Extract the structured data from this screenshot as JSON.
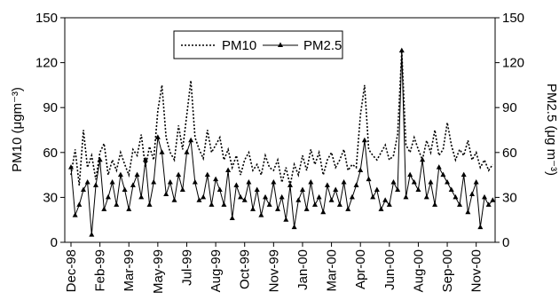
{
  "chart_data": {
    "type": "line",
    "ylabel": "PM10 (μgm⁻³)",
    "y2label": "PM2.5 (μg m⁻³)",
    "categories": [
      "Dec-98",
      null,
      null,
      null,
      null,
      null,
      null,
      "Feb-99",
      null,
      null,
      null,
      null,
      null,
      null,
      "Mar-99",
      null,
      null,
      null,
      null,
      null,
      null,
      "May-99",
      null,
      null,
      null,
      null,
      null,
      null,
      "Jul-99",
      null,
      null,
      null,
      null,
      null,
      null,
      "Aug-99",
      null,
      null,
      null,
      null,
      null,
      null,
      "Oct-99",
      null,
      null,
      null,
      null,
      null,
      null,
      "Nov-99",
      null,
      null,
      null,
      null,
      null,
      null,
      "Jan-00",
      null,
      null,
      null,
      null,
      null,
      null,
      "Mar-00",
      null,
      null,
      null,
      null,
      null,
      null,
      "Apr-00",
      null,
      null,
      null,
      null,
      null,
      null,
      "Jun-00",
      null,
      null,
      null,
      null,
      null,
      null,
      "Aug-00",
      null,
      null,
      null,
      null,
      null,
      null,
      "Sep-00",
      null,
      null,
      null,
      null,
      null,
      null,
      "Nov-00",
      null,
      null,
      null,
      null
    ],
    "series": [
      {
        "name": "PM10",
        "color": "#000000",
        "dash": true,
        "values": [
          45,
          62,
          38,
          75,
          50,
          58,
          42,
          60,
          66,
          45,
          55,
          48,
          60,
          52,
          45,
          62,
          58,
          72,
          50,
          64,
          55,
          88,
          105,
          70,
          60,
          55,
          78,
          62,
          85,
          108,
          70,
          62,
          56,
          75,
          60,
          65,
          70,
          55,
          62,
          50,
          58,
          45,
          55,
          60,
          48,
          52,
          45,
          58,
          50,
          48,
          55,
          40,
          50,
          38,
          52,
          45,
          58,
          48,
          62,
          52,
          60,
          45,
          55,
          60,
          50,
          55,
          62,
          48,
          52,
          50,
          85,
          105,
          62,
          58,
          55,
          60,
          65,
          55,
          58,
          72,
          128,
          65,
          60,
          70,
          62,
          55,
          68,
          60,
          75,
          58,
          62,
          80,
          65,
          55,
          62,
          58,
          68,
          55,
          60,
          50,
          55,
          48,
          52
        ]
      },
      {
        "name": "PM2.5",
        "color": "#000000",
        "dash": false,
        "marker": "triangle",
        "axis": "y2",
        "values": [
          50,
          18,
          25,
          35,
          40,
          5,
          38,
          55,
          22,
          30,
          40,
          25,
          45,
          35,
          22,
          38,
          45,
          30,
          55,
          25,
          40,
          70,
          60,
          32,
          40,
          28,
          45,
          35,
          60,
          68,
          40,
          28,
          30,
          45,
          25,
          42,
          35,
          25,
          48,
          16,
          38,
          30,
          28,
          40,
          22,
          35,
          18,
          30,
          25,
          40,
          22,
          30,
          15,
          38,
          10,
          28,
          35,
          22,
          40,
          25,
          30,
          20,
          38,
          28,
          35,
          25,
          40,
          22,
          30,
          38,
          48,
          68,
          42,
          30,
          35,
          22,
          28,
          25,
          40,
          35,
          128,
          30,
          45,
          40,
          35,
          55,
          30,
          40,
          25,
          50,
          45,
          40,
          35,
          30,
          25,
          45,
          20,
          32,
          40,
          10,
          30,
          25,
          28
        ]
      }
    ],
    "ylim": [
      0,
      150
    ],
    "yticks": [
      0,
      30,
      60,
      90,
      120,
      150
    ],
    "y2lim": [
      0,
      150
    ],
    "y2ticks": [
      0,
      30,
      60,
      90,
      120,
      150
    ],
    "legend": "top"
  }
}
